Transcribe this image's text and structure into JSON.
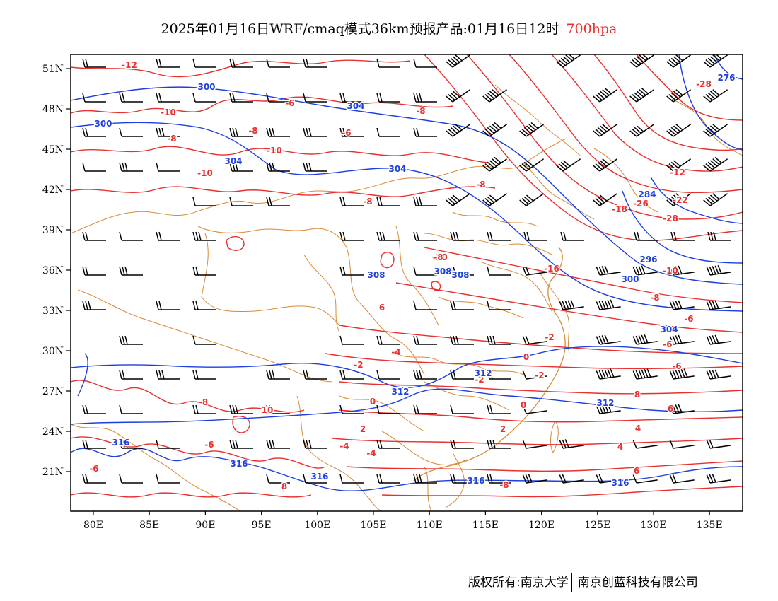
{
  "header": {
    "title_main": "2025年01月16日WRF/cmaq模式36km预报产品:01月16日12时",
    "title_level": "700hpa"
  },
  "footer": {
    "copyright": "版权所有:南京大学",
    "company": "南京创蓝科技有限公司"
  },
  "colors": {
    "temperature": "#e8302f",
    "geopotential": "#1e3fe0",
    "boundary": "#d98a36",
    "wind": "#000000"
  },
  "axes": {
    "lon_labels": [
      "80E",
      "85E",
      "90E",
      "95E",
      "100E",
      "105E",
      "110E",
      "115E",
      "120E",
      "125E",
      "130E",
      "135E"
    ],
    "lat_labels": [
      "51N",
      "48N",
      "45N",
      "42N",
      "39N",
      "36N",
      "33N",
      "30N",
      "27N",
      "24N",
      "21N"
    ]
  },
  "temperature_labels": [
    "-12",
    "-10",
    "-8",
    "-6",
    "-8",
    "-6",
    "-10",
    "-8",
    "-10",
    "-8",
    "-8",
    "-10",
    "-16",
    "-18",
    "-26",
    "-22",
    "-28",
    "-28",
    "-12",
    "-10",
    "-8",
    "-6",
    "-6",
    "-6",
    "-4",
    "-2",
    "-2",
    "0",
    "2",
    "4",
    "6",
    "8",
    "10",
    "-6",
    "-4",
    "-4",
    "-2",
    "0",
    "-2",
    "0",
    "2",
    "4",
    "6",
    "8",
    "-6",
    "-8",
    "6",
    "-8",
    "8"
  ],
  "height_labels": [
    "300",
    "304",
    "300",
    "304",
    "304",
    "308",
    "308",
    "312",
    "312",
    "312",
    "316",
    "316",
    "316",
    "316",
    "316",
    "300",
    "296",
    "284",
    "276",
    "304",
    "308"
  ]
}
